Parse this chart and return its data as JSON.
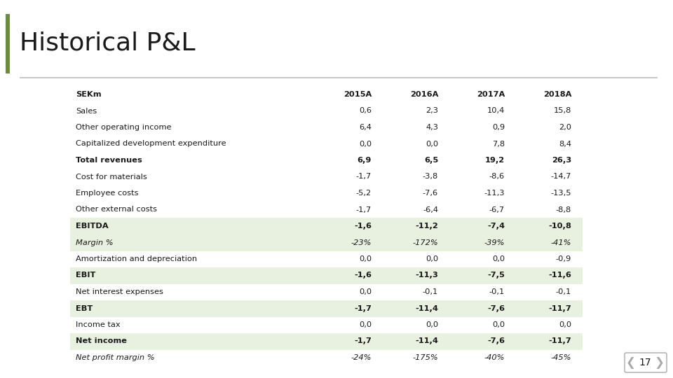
{
  "title": "Historical P&L",
  "title_color": "#1a1a1a",
  "title_fontsize": 26,
  "accent_bar_color": "#6b8c3a",
  "separator_color": "#c8c8c8",
  "background_color": "#ffffff",
  "highlight_color": "#e8f0df",
  "page_number": "17",
  "columns": [
    "SEKm",
    "2015A",
    "2016A",
    "2017A",
    "2018A"
  ],
  "rows": [
    {
      "label": "Sales",
      "bold": false,
      "italic": false,
      "highlight": false,
      "values": [
        "0,6",
        "2,3",
        "10,4",
        "15,8"
      ]
    },
    {
      "label": "Other operating income",
      "bold": false,
      "italic": false,
      "highlight": false,
      "values": [
        "6,4",
        "4,3",
        "0,9",
        "2,0"
      ]
    },
    {
      "label": "Capitalized development expenditure",
      "bold": false,
      "italic": false,
      "highlight": false,
      "values": [
        "0,0",
        "0,0",
        "7,8",
        "8,4"
      ]
    },
    {
      "label": "Total revenues",
      "bold": true,
      "italic": false,
      "highlight": false,
      "values": [
        "6,9",
        "6,5",
        "19,2",
        "26,3"
      ]
    },
    {
      "label": "Cost for materials",
      "bold": false,
      "italic": false,
      "highlight": false,
      "values": [
        "-1,7",
        "-3,8",
        "-8,6",
        "-14,7"
      ]
    },
    {
      "label": "Employee costs",
      "bold": false,
      "italic": false,
      "highlight": false,
      "values": [
        "-5,2",
        "-7,6",
        "-11,3",
        "-13,5"
      ]
    },
    {
      "label": "Other external costs",
      "bold": false,
      "italic": false,
      "highlight": false,
      "values": [
        "-1,7",
        "-6,4",
        "-6,7",
        "-8,8"
      ]
    },
    {
      "label": "EBITDA",
      "bold": true,
      "italic": false,
      "highlight": true,
      "values": [
        "-1,6",
        "-11,2",
        "-7,4",
        "-10,8"
      ]
    },
    {
      "label": "Margin %",
      "bold": false,
      "italic": true,
      "highlight": true,
      "values": [
        "-23%",
        "-172%",
        "-39%",
        "-41%"
      ]
    },
    {
      "label": "Amortization and depreciation",
      "bold": false,
      "italic": false,
      "highlight": false,
      "values": [
        "0,0",
        "0,0",
        "0,0",
        "-0,9"
      ]
    },
    {
      "label": "EBIT",
      "bold": true,
      "italic": false,
      "highlight": true,
      "values": [
        "-1,6",
        "-11,3",
        "-7,5",
        "-11,6"
      ]
    },
    {
      "label": "Net interest expenses",
      "bold": false,
      "italic": false,
      "highlight": false,
      "values": [
        "0,0",
        "-0,1",
        "-0,1",
        "-0,1"
      ]
    },
    {
      "label": "EBT",
      "bold": true,
      "italic": false,
      "highlight": true,
      "values": [
        "-1,7",
        "-11,4",
        "-7,6",
        "-11,7"
      ]
    },
    {
      "label": "Income tax",
      "bold": false,
      "italic": false,
      "highlight": false,
      "values": [
        "0,0",
        "0,0",
        "0,0",
        "0,0"
      ]
    },
    {
      "label": "Net income",
      "bold": true,
      "italic": false,
      "highlight": true,
      "values": [
        "-1,7",
        "-11,4",
        "-7,6",
        "-11,7"
      ]
    },
    {
      "label": "Net profit margin %",
      "bold": false,
      "italic": true,
      "highlight": false,
      "values": [
        "-24%",
        "-175%",
        "-40%",
        "-45%"
      ]
    }
  ]
}
